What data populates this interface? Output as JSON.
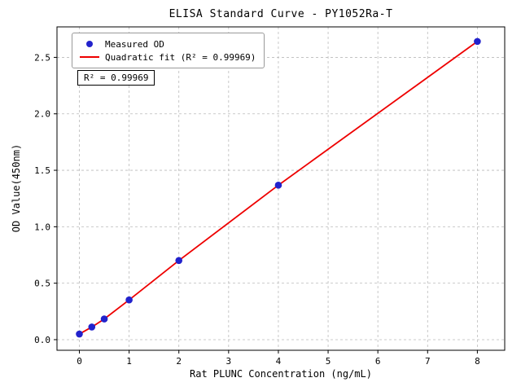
{
  "chart_data": {
    "type": "scatter",
    "title": "ELISA Standard Curve - PY1052Ra-T",
    "xlabel": "Rat PLUNC Concentration (ng/mL)",
    "ylabel": "OD Value(450nm)",
    "xlim": [
      -0.45,
      8.55
    ],
    "ylim": [
      -0.094,
      2.77
    ],
    "xticks": [
      0,
      1,
      2,
      3,
      4,
      5,
      6,
      7,
      8
    ],
    "xtick_labels": [
      "0",
      "1",
      "2",
      "3",
      "4",
      "5",
      "6",
      "7",
      "8"
    ],
    "yticks": [
      0,
      0.5,
      1,
      1.5,
      2,
      2.5
    ],
    "ytick_labels": [
      "0.0",
      "0.5",
      "1.0",
      "1.5",
      "2.0",
      "2.5"
    ],
    "grid": true,
    "grid_color": "#bbbbbb",
    "frame_color": "#000000",
    "annotation": "R² = 0.99969",
    "legend": {
      "position": "upper-left",
      "items": [
        {
          "label": "Measured OD",
          "marker": "dot",
          "color": "#2222cc"
        },
        {
          "label": "Quadratic fit (R² = 0.99969)",
          "marker": "line",
          "color": "#ee0000"
        }
      ]
    },
    "series": [
      {
        "name": "Quadratic fit",
        "type": "line",
        "color": "#ee0000",
        "x": [
          0,
          0.25,
          0.5,
          1,
          2,
          4,
          8
        ],
        "y": [
          0.05,
          0.112,
          0.183,
          0.352,
          0.701,
          1.368,
          2.641
        ]
      },
      {
        "name": "Measured OD",
        "type": "scatter",
        "color": "#2222cc",
        "x": [
          0,
          0.25,
          0.5,
          1,
          2,
          4,
          8
        ],
        "y": [
          0.05,
          0.112,
          0.183,
          0.352,
          0.701,
          1.368,
          2.641
        ]
      }
    ]
  }
}
